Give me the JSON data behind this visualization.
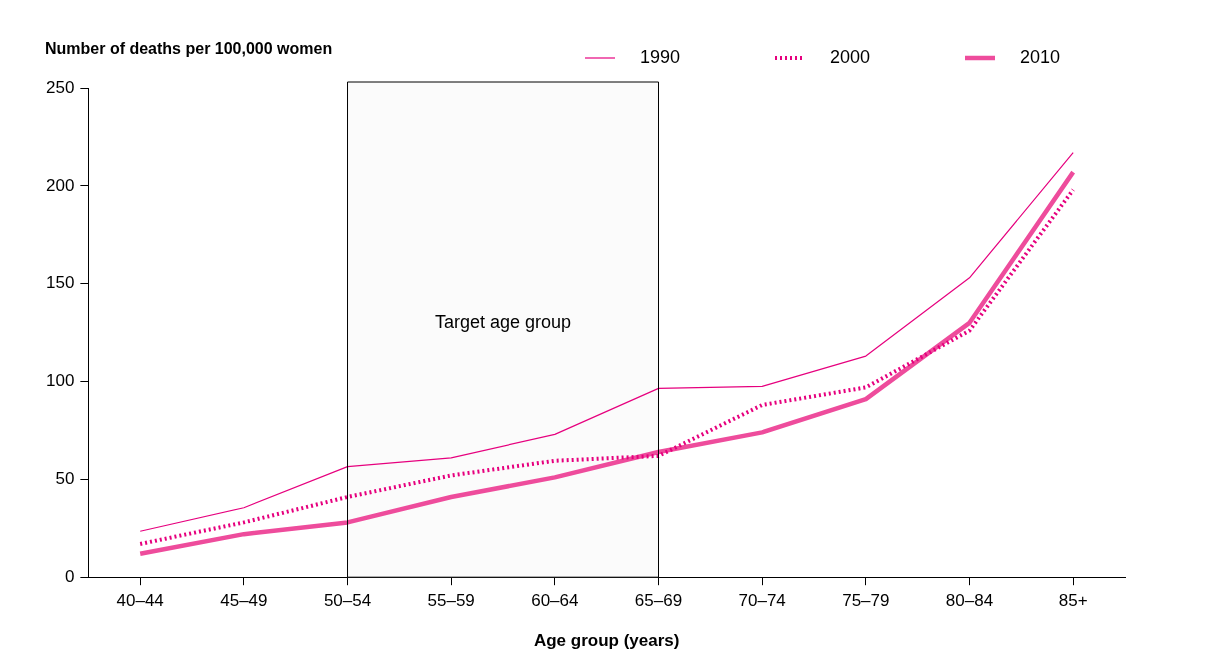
{
  "chart_data": {
    "type": "line",
    "xlabel": "Age group (years)",
    "ylabel": "Number of deaths per 100,000 women",
    "categories": [
      "40–44",
      "45–49",
      "50–54",
      "55–59",
      "60–64",
      "65–69",
      "70–74",
      "75–79",
      "80–84",
      "85+"
    ],
    "series": [
      {
        "name": "1990",
        "color": "#e6007e",
        "line_style": "solid",
        "values": [
          23.5,
          35.5,
          56.5,
          61,
          73,
          96.5,
          97.5,
          113,
          153,
          217
        ]
      },
      {
        "name": "2000",
        "color": "#e6007e",
        "line_style": "dotted",
        "values": [
          17,
          28,
          41,
          52,
          59.5,
          62,
          88,
          97,
          126,
          198
        ]
      },
      {
        "name": "2010",
        "color": "#ee4c9c",
        "line_style": "solid",
        "values": [
          12,
          22,
          28,
          41,
          51,
          64,
          74,
          91,
          130,
          207
        ]
      }
    ],
    "ylim": [
      0,
      250
    ],
    "yticks": [
      0,
      50,
      100,
      150,
      200,
      250
    ],
    "grid": false,
    "legend": "top right",
    "marker": "none",
    "bands": [
      {
        "axis": "x",
        "from": "50–54",
        "to": "65–69",
        "label": "Target age group"
      }
    ]
  }
}
